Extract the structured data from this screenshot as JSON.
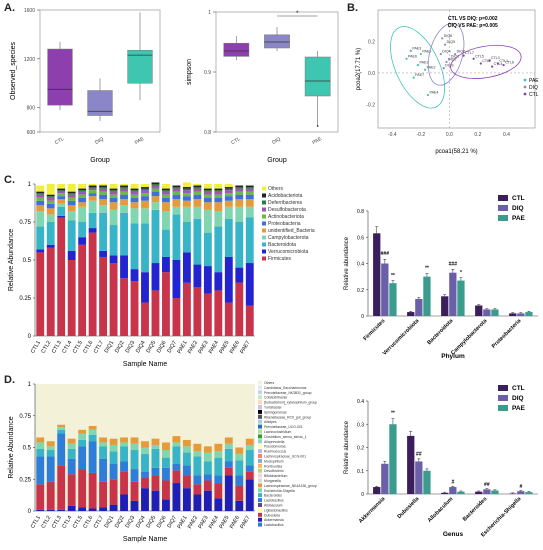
{
  "labels": {
    "A": "A.",
    "B": "B.",
    "C": "C.",
    "D": "D."
  },
  "chart_data": [
    {
      "id": "A1",
      "type": "box",
      "ylabel": "Observed_species",
      "xlabel": "Group",
      "ylim": [
        600,
        1600
      ],
      "yticks": [
        600,
        800,
        1200,
        1600
      ],
      "groups": [
        {
          "name": "CTL",
          "color": "#8e3fae",
          "min": 780,
          "q1": 820,
          "median": 950,
          "q3": 1280,
          "max": 1340
        },
        {
          "name": "DIQ",
          "color": "#8a86c8",
          "min": 690,
          "q1": 735,
          "median": 770,
          "q3": 940,
          "max": 1040
        },
        {
          "name": "PAE",
          "color": "#3fc6b0",
          "min": 860,
          "q1": 1000,
          "median": 1230,
          "q3": 1270,
          "max": 1580
        }
      ]
    },
    {
      "id": "A2",
      "type": "box",
      "ylabel": "simpson",
      "xlabel": "Group",
      "ylim": [
        0.8,
        1.0
      ],
      "yticks": [
        0.8,
        0.9,
        1.0
      ],
      "annotation": "*",
      "groups": [
        {
          "name": "CTL",
          "color": "#8e3fae",
          "min": 0.92,
          "q1": 0.926,
          "median": 0.935,
          "q3": 0.948,
          "max": 0.96
        },
        {
          "name": "DIQ",
          "color": "#8a86c8",
          "min": 0.935,
          "q1": 0.94,
          "median": 0.95,
          "q3": 0.962,
          "max": 0.975
        },
        {
          "name": "PAE",
          "color": "#3fc6b0",
          "min": 0.81,
          "q1": 0.86,
          "median": 0.885,
          "q3": 0.925,
          "max": 0.935,
          "outlier": 0.81
        }
      ]
    },
    {
      "id": "B",
      "type": "scatter",
      "xlabel": "pcoa1(58.21 %)",
      "ylabel": "pcoa2(17.71 %)",
      "xlim": [
        -0.5,
        0.6
      ],
      "ylim": [
        -0.35,
        0.4
      ],
      "xticks": [
        -0.4,
        -0.2,
        0.0,
        0.2,
        0.4
      ],
      "yticks": [
        -0.2,
        0.0,
        0.2
      ],
      "stats": [
        "CTL VS DIQ: p=0.002",
        "DIQ VS PAE: p=0.005"
      ],
      "legend": [
        "PAE",
        "DIQ",
        "CTL"
      ],
      "series": [
        {
          "name": "PAE",
          "color": "#3fc6b0",
          "points": [
            [
              -0.3,
              0.09,
              "PAE6"
            ],
            [
              -0.27,
              0.14,
              "PAE3"
            ],
            [
              -0.22,
              0.05,
              "PAE1"
            ],
            [
              -0.25,
              -0.03,
              "PAE7"
            ],
            [
              -0.17,
              0.02,
              "PAE2"
            ],
            [
              -0.15,
              -0.14,
              "PAE4"
            ],
            [
              -0.2,
              0.12,
              "PAE5"
            ]
          ]
        },
        {
          "name": "DIQ",
          "color": "#8a86c8",
          "points": [
            [
              -0.05,
              0.22,
              "DIQ6"
            ],
            [
              -0.03,
              0.18,
              "DIQ5"
            ],
            [
              -0.06,
              0.12,
              "DIQ4"
            ],
            [
              -0.02,
              0.07,
              "DIQ2"
            ],
            [
              -0.04,
              0.03,
              "DIQ3"
            ],
            [
              0.0,
              0.09,
              "DIQ1"
            ],
            [
              0.04,
              0.12,
              "DIQ7"
            ]
          ]
        },
        {
          "name": "CTL",
          "color": "#8e3fae",
          "points": [
            [
              0.1,
              0.11,
              "CTL7"
            ],
            [
              0.17,
              0.09,
              "CTL5"
            ],
            [
              0.22,
              0.06,
              "CTL2"
            ],
            [
              0.28,
              0.08,
              "CTL3"
            ],
            [
              0.3,
              0.04,
              "CTL4"
            ],
            [
              0.34,
              0.06,
              "CTL1"
            ],
            [
              0.38,
              0.05,
              "CTL6"
            ]
          ]
        }
      ]
    },
    {
      "id": "C1",
      "type": "stacked-bar",
      "ylabel": "Relative Abundance",
      "xlabel": "Sample Name",
      "ylim": [
        0,
        1
      ],
      "yticks": [
        0,
        0.25,
        0.5,
        0.75,
        1
      ],
      "categories": [
        "CTL1",
        "CTL2",
        "CTL3",
        "CTL4",
        "CTL5",
        "CTL6",
        "CTL7",
        "DIQ1",
        "DIQ2",
        "DIQ3",
        "DIQ4",
        "DIQ5",
        "DIQ6",
        "DIQ7",
        "PAE1",
        "PAE2",
        "PAE3",
        "PAE4",
        "PAE5",
        "PAE6",
        "PAE7"
      ],
      "series": [
        {
          "name": "Firmicutes",
          "color": "#c8344a",
          "values": [
            0.55,
            0.58,
            0.78,
            0.5,
            0.6,
            0.68,
            0.52,
            0.48,
            0.38,
            0.36,
            0.22,
            0.3,
            0.42,
            0.25,
            0.35,
            0.32,
            0.28,
            0.3,
            0.22,
            0.35,
            0.2
          ]
        },
        {
          "name": "Verrucomicrobiota",
          "color": "#2323d0",
          "values": [
            0.02,
            0.02,
            0.01,
            0.06,
            0.05,
            0.03,
            0.04,
            0.05,
            0.15,
            0.08,
            0.2,
            0.18,
            0.1,
            0.25,
            0.2,
            0.15,
            0.18,
            0.12,
            0.3,
            0.1,
            0.28
          ]
        },
        {
          "name": "Bacteroidota",
          "color": "#37b4c8",
          "values": [
            0.15,
            0.15,
            0.06,
            0.2,
            0.1,
            0.1,
            0.25,
            0.2,
            0.28,
            0.3,
            0.32,
            0.35,
            0.18,
            0.3,
            0.2,
            0.3,
            0.22,
            0.3,
            0.25,
            0.3,
            0.3
          ]
        },
        {
          "name": "Campylobacterota",
          "color": "#7fd6b0",
          "values": [
            0.1,
            0.05,
            0.02,
            0.06,
            0.1,
            0.08,
            0.05,
            0.1,
            0.05,
            0.1,
            0.1,
            0.05,
            0.12,
            0.05,
            0.1,
            0.08,
            0.15,
            0.1,
            0.08,
            0.1,
            0.07
          ]
        },
        {
          "name": "unidentified_Bacteria",
          "color": "#e39b3c",
          "values": [
            0.04,
            0.04,
            0.03,
            0.04,
            0.03,
            0.03,
            0.04,
            0.05,
            0.04,
            0.04,
            0.05,
            0.04,
            0.06,
            0.05,
            0.04,
            0.05,
            0.05,
            0.06,
            0.04,
            0.05,
            0.05
          ]
        },
        {
          "name": "Proteobacteria",
          "color": "#3f6fd8",
          "values": [
            0.03,
            0.03,
            0.02,
            0.03,
            0.03,
            0.02,
            0.03,
            0.03,
            0.03,
            0.03,
            0.03,
            0.03,
            0.03,
            0.03,
            0.03,
            0.03,
            0.03,
            0.03,
            0.03,
            0.03,
            0.03
          ]
        },
        {
          "name": "Actinobacteriota",
          "color": "#6dbb3c",
          "values": [
            0.02,
            0.02,
            0.02,
            0.02,
            0.02,
            0.02,
            0.02,
            0.02,
            0.02,
            0.02,
            0.02,
            0.02,
            0.02,
            0.02,
            0.02,
            0.02,
            0.02,
            0.02,
            0.02,
            0.02,
            0.02
          ]
        },
        {
          "name": "Desulfobacterota",
          "color": "#9b59b6",
          "values": [
            0.02,
            0.02,
            0.01,
            0.02,
            0.02,
            0.01,
            0.02,
            0.02,
            0.02,
            0.02,
            0.02,
            0.02,
            0.02,
            0.02,
            0.02,
            0.02,
            0.02,
            0.02,
            0.02,
            0.02,
            0.02
          ]
        },
        {
          "name": "Deferribacteres",
          "color": "#2f7d3a",
          "values": [
            0.01,
            0.01,
            0.01,
            0.01,
            0.01,
            0.01,
            0.01,
            0.01,
            0.01,
            0.01,
            0.01,
            0.01,
            0.01,
            0.01,
            0.01,
            0.01,
            0.01,
            0.01,
            0.01,
            0.01,
            0.01
          ]
        },
        {
          "name": "Acidobacteriota",
          "color": "#222222",
          "values": [
            0.01,
            0.01,
            0.01,
            0.01,
            0.01,
            0.01,
            0.01,
            0.01,
            0.01,
            0.01,
            0.01,
            0.01,
            0.01,
            0.01,
            0.01,
            0.01,
            0.01,
            0.01,
            0.01,
            0.01,
            0.01
          ]
        },
        {
          "name": "Others",
          "color": "#f2ef3a",
          "values": [
            0.04,
            0.07,
            0.03,
            0.05,
            0.03,
            0.01,
            0.01,
            0.03,
            0.01,
            0.03,
            0.02,
            0.0,
            0.03,
            0.0,
            0.03,
            0.01,
            0.03,
            0.03,
            0.02,
            0.0,
            0.0
          ]
        }
      ]
    },
    {
      "id": "C2",
      "type": "bar",
      "ylabel": "Relative abundance",
      "xlabel": "Phylum",
      "ylim": [
        0,
        0.8
      ],
      "yticks": [
        0,
        0.2,
        0.4,
        0.6,
        0.8
      ],
      "categories": [
        "Firmicutes",
        "Verrucomicrobiota",
        "Bacteroidota",
        "Campylobacterota",
        "Proteobacteria"
      ],
      "series": [
        {
          "name": "CTL",
          "color": "#3a1f5c",
          "values": [
            0.63,
            0.03,
            0.15,
            0.08,
            0.02
          ]
        },
        {
          "name": "DIQ",
          "color": "#6a60a8",
          "values": [
            0.4,
            0.13,
            0.33,
            0.05,
            0.02
          ]
        },
        {
          "name": "PAE",
          "color": "#3a9c8c",
          "values": [
            0.25,
            0.3,
            0.27,
            0.05,
            0.03
          ]
        }
      ],
      "annotations": [
        {
          "cat": 0,
          "series": 1,
          "text": "###"
        },
        {
          "cat": 0,
          "series": 2,
          "text": "**"
        },
        {
          "cat": 1,
          "series": 2,
          "text": "**"
        },
        {
          "cat": 2,
          "series": 1,
          "text": "###"
        },
        {
          "cat": 2,
          "series": 2,
          "text": "*"
        }
      ]
    },
    {
      "id": "D1",
      "type": "stacked-bar",
      "ylabel": "Relative Abundance",
      "xlabel": "Sample Name",
      "ylim": [
        0,
        1
      ],
      "yticks": [
        0,
        0.25,
        0.5,
        0.75,
        1
      ],
      "categories": [
        "CTL1",
        "CTL2",
        "CTL3",
        "CTL4",
        "CTL5",
        "CTL6",
        "CTL7",
        "DIQ1",
        "DIQ2",
        "DIQ3",
        "DIQ4",
        "DIQ5",
        "DIQ6",
        "DIQ7",
        "PAE1",
        "PAE2",
        "PAE3",
        "PAE4",
        "PAE5",
        "PAE6",
        "PAE7"
      ],
      "legend": [
        "Others",
        "Candidatus_Saccharimonas",
        "Prevotellaceae_NK3B31_group",
        "Colidextribacter",
        "[Eubacterium]_xylanophilum_group",
        "Turicibacter",
        "Sphingomonas",
        "Rikenellaceae_RC9_gut_group",
        "Alistipes",
        "Prevotellaceae_UCG-001",
        "Lachnoclostridium",
        "Clostridium_sensu_stricto_1",
        "Alloprevotella",
        "Pseudomonas",
        "Ruminococcus",
        "Lachnospiraceae_UCG-001",
        "Mucispirillum",
        "Romboutsia",
        "Desulfovibrio",
        "Bifidobacterium",
        "Morganella",
        "Lachnospiraceae_NK4A136_group",
        "Escherichia-Shigella",
        "Bacteroides",
        "Lactobacillus",
        "Allobaculum",
        "Ligilactobacillus",
        "Dubosiella",
        "Akkermansia",
        "Lactobacillus"
      ],
      "series": [
        {
          "name": "Akkermansia",
          "color": "#1f1fb8",
          "values": [
            0.01,
            0.01,
            0.01,
            0.04,
            0.03,
            0.02,
            0.03,
            0.05,
            0.13,
            0.08,
            0.18,
            0.16,
            0.09,
            0.22,
            0.18,
            0.13,
            0.16,
            0.1,
            0.28,
            0.08,
            0.25
          ]
        },
        {
          "name": "Dubosiella",
          "color": "#c8344a",
          "values": [
            0.2,
            0.22,
            0.35,
            0.25,
            0.3,
            0.28,
            0.2,
            0.2,
            0.18,
            0.15,
            0.08,
            0.12,
            0.15,
            0.1,
            0.1,
            0.08,
            0.08,
            0.12,
            0.06,
            0.12,
            0.06
          ]
        },
        {
          "name": "Lactobacillus",
          "color": "#2e7dd8",
          "values": [
            0.22,
            0.2,
            0.25,
            0.12,
            0.18,
            0.25,
            0.18,
            0.12,
            0.08,
            0.1,
            0.05,
            0.06,
            0.1,
            0.05,
            0.08,
            0.07,
            0.05,
            0.06,
            0.05,
            0.08,
            0.05
          ]
        },
        {
          "name": "Bacteroides",
          "color": "#37b4c8",
          "values": [
            0.06,
            0.05,
            0.03,
            0.08,
            0.05,
            0.05,
            0.1,
            0.1,
            0.12,
            0.15,
            0.14,
            0.15,
            0.08,
            0.14,
            0.1,
            0.15,
            0.1,
            0.14,
            0.1,
            0.12,
            0.12
          ]
        },
        {
          "name": "Escherichia-Shigella",
          "color": "#7fd6b0",
          "values": [
            0.05,
            0.03,
            0.02,
            0.04,
            0.05,
            0.04,
            0.03,
            0.05,
            0.03,
            0.05,
            0.05,
            0.03,
            0.06,
            0.03,
            0.05,
            0.04,
            0.07,
            0.05,
            0.04,
            0.05,
            0.04
          ]
        },
        {
          "name": "Lachnospiraceae_NK4A136_group",
          "color": "#e39b3c",
          "values": [
            0.04,
            0.04,
            0.02,
            0.04,
            0.03,
            0.03,
            0.04,
            0.05,
            0.04,
            0.05,
            0.05,
            0.05,
            0.06,
            0.05,
            0.05,
            0.06,
            0.05,
            0.06,
            0.05,
            0.05,
            0.05
          ]
        },
        {
          "name": "Others",
          "color": "#f3f1d8",
          "values": [
            0.42,
            0.45,
            0.32,
            0.43,
            0.36,
            0.33,
            0.42,
            0.43,
            0.42,
            0.42,
            0.45,
            0.43,
            0.46,
            0.41,
            0.44,
            0.47,
            0.49,
            0.47,
            0.42,
            0.5,
            0.43
          ]
        }
      ]
    },
    {
      "id": "D2",
      "type": "bar",
      "ylabel": "Relative abundance",
      "xlabel": "Genus",
      "ylim": [
        0,
        0.4
      ],
      "yticks": [
        0,
        0.1,
        0.2,
        0.3,
        0.4
      ],
      "categories": [
        "Akkermansia",
        "Dubosiella",
        "Allobaculum",
        "Bacteroides",
        "Escherichia-Shigella"
      ],
      "series": [
        {
          "name": "CTL",
          "color": "#3a1f5c",
          "values": [
            0.03,
            0.25,
            0.005,
            0.01,
            0.002
          ]
        },
        {
          "name": "DIQ",
          "color": "#6a60a8",
          "values": [
            0.13,
            0.14,
            0.03,
            0.02,
            0.012
          ]
        },
        {
          "name": "PAE",
          "color": "#3a9c8c",
          "values": [
            0.3,
            0.1,
            0.01,
            0.015,
            0.008
          ]
        }
      ],
      "annotations": [
        {
          "cat": 0,
          "series": 2,
          "text": "**"
        },
        {
          "cat": 1,
          "series": 1,
          "text": "##"
        },
        {
          "cat": 2,
          "series": 1,
          "text": "#"
        },
        {
          "cat": 3,
          "series": 1,
          "text": "##"
        },
        {
          "cat": 4,
          "series": 1,
          "text": "#"
        }
      ]
    }
  ]
}
